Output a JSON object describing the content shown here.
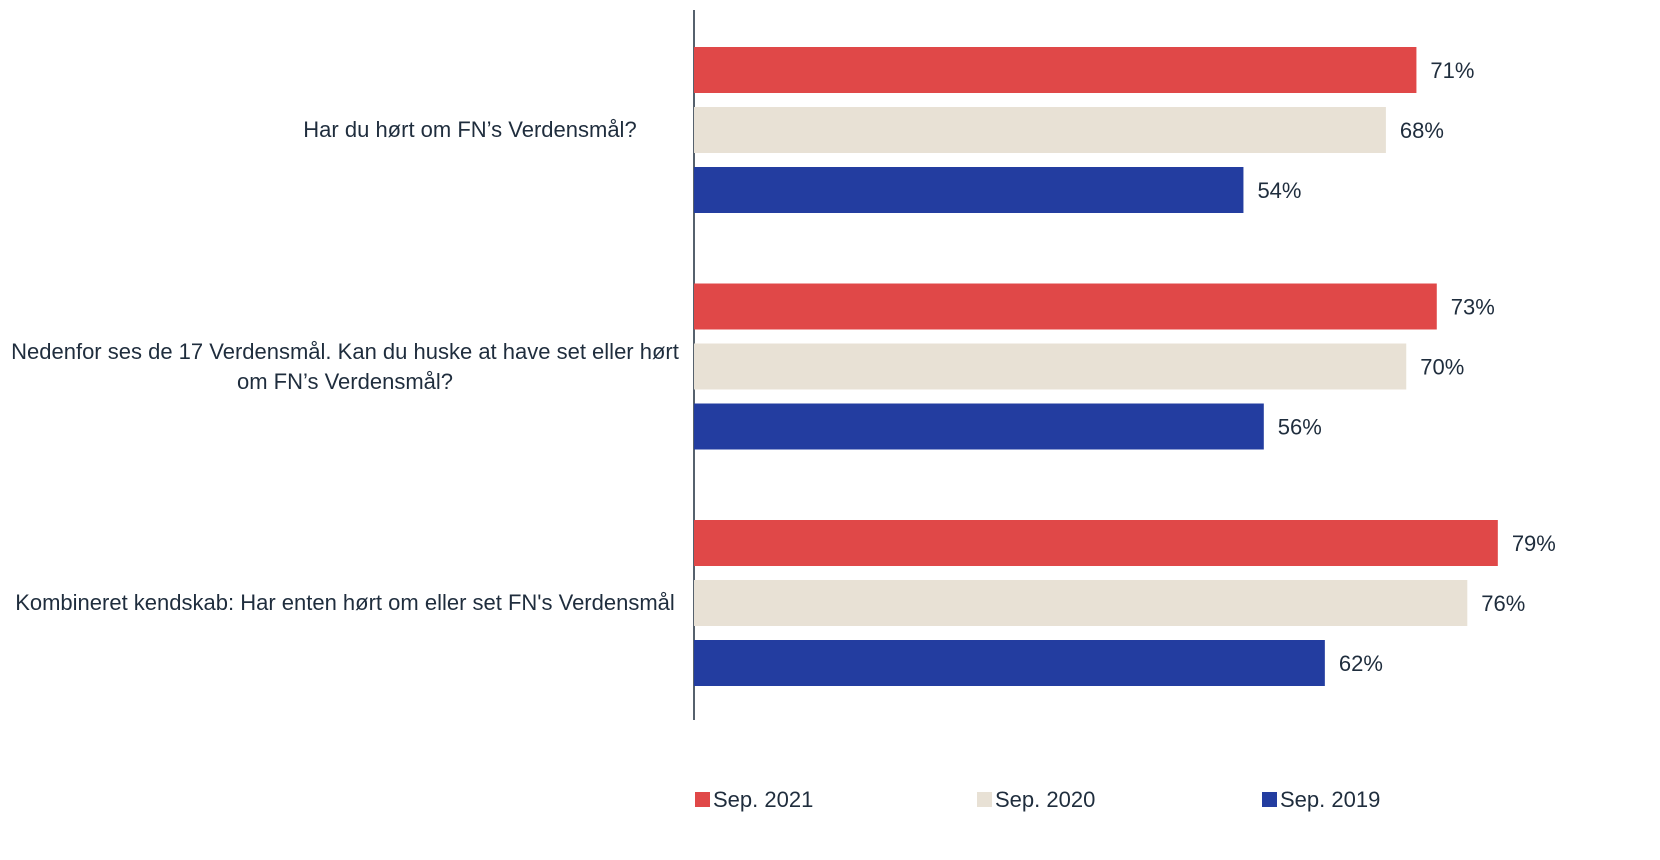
{
  "chart_data": {
    "type": "hbar",
    "categories": [
      "Har du hørt om FN’s Verdensmål?",
      "Nedenfor ses de 17 Verdensmål. Kan du huske at have set eller hørt om FN’s Verdensmål?",
      "Kombineret kendskab: Har enten hørt om eller set FN's Verdensmål"
    ],
    "series": [
      {
        "name": "Sep. 2021",
        "color": "#e04848",
        "values": [
          71,
          73,
          79
        ],
        "value_labels": [
          "71%",
          "73%",
          "79%"
        ]
      },
      {
        "name": "Sep. 2020",
        "color": "#e8e1d5",
        "values": [
          68,
          70,
          76
        ],
        "value_labels": [
          "68%",
          "70%",
          "76%"
        ]
      },
      {
        "name": "Sep. 2019",
        "color": "#233da0",
        "values": [
          54,
          56,
          62
        ],
        "value_labels": [
          "54%",
          "56%",
          "62%"
        ]
      }
    ],
    "xlim": [
      0,
      80
    ],
    "legend": "bottom"
  }
}
